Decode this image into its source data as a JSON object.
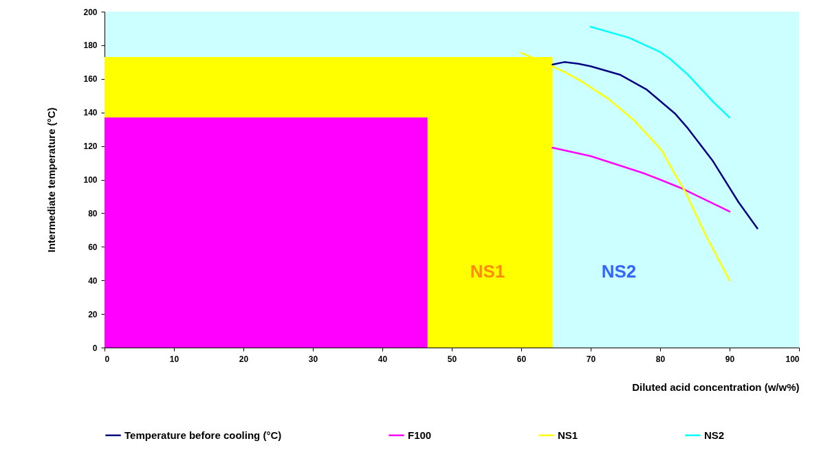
{
  "chart_data": {
    "type": "line",
    "xlabel": "Diluted acid concentration (w/w%)",
    "ylabel": "Intermediate temperature (°C)",
    "xlim": [
      0,
      100
    ],
    "xticks": [
      0,
      10,
      20,
      30,
      40,
      50,
      60,
      70,
      80,
      90,
      100
    ],
    "ylim": [
      0,
      200
    ],
    "yticks": [
      0,
      20,
      40,
      60,
      80,
      100,
      120,
      140,
      160,
      180,
      200
    ],
    "grid": false,
    "legend": "bottom",
    "marker": "none",
    "line_style": "solid",
    "series": [
      {
        "type": "area",
        "color": "#ffff00",
        "x": [
          0,
          64.5
        ],
        "values": [
          173,
          173
        ]
      },
      {
        "type": "area",
        "color": "#ff00ff",
        "x": [
          0,
          46.5
        ],
        "values": [
          137,
          137
        ]
      },
      {
        "name": "Temperature before cooling (°C)",
        "color": "#000080",
        "x": [
          64.5,
          66.2,
          68.2,
          70,
          74.2,
          78.1,
          82.1,
          84,
          87.6,
          91.3,
          94
        ],
        "values": [
          168.5,
          170,
          169,
          167.5,
          162.5,
          153.5,
          139.5,
          130.5,
          111,
          86.5,
          71
        ]
      },
      {
        "name": "F100",
        "color": "#ff00ff",
        "x": [
          64.5,
          70,
          77.5,
          80,
          83,
          90
        ],
        "values": [
          119,
          114,
          104,
          100,
          95,
          81
        ]
      },
      {
        "name": "NS1",
        "color": "#ffff00",
        "x": [
          60,
          64.7,
          66.3,
          68.7,
          72.6,
          76.2,
          78.8,
          80.3,
          82.1,
          83.6,
          86.5,
          90
        ],
        "values": [
          175.5,
          167,
          164,
          158.5,
          148,
          135.5,
          124,
          117,
          103.5,
          93,
          67.5,
          40
        ]
      },
      {
        "name": "NS2",
        "color": "#00ffff",
        "x": [
          70,
          75.5,
          80,
          81.4,
          84,
          87.6,
          90
        ],
        "values": [
          191,
          184.5,
          176,
          172,
          162.5,
          146.5,
          137
        ]
      }
    ],
    "annotations": [
      "NS1",
      "NS2"
    ]
  }
}
